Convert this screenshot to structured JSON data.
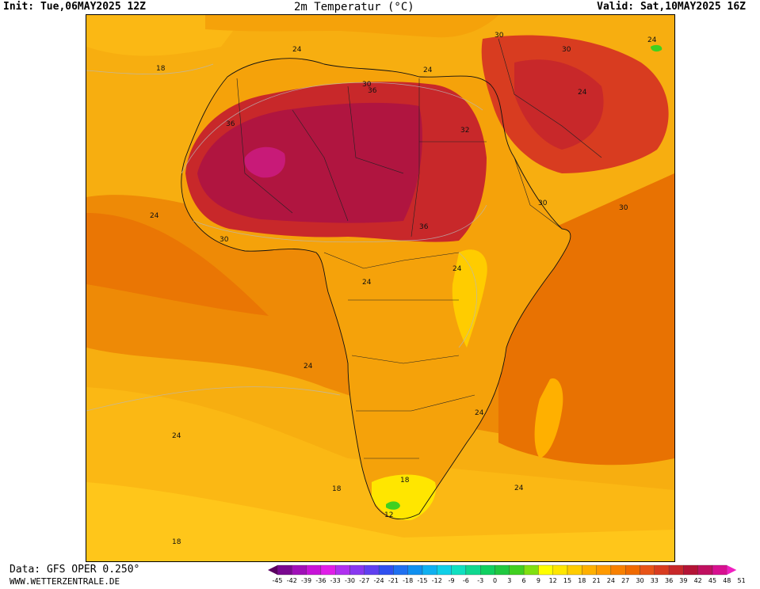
{
  "header": {
    "init": "Init: Tue,06MAY2025 12Z",
    "title": "2m Temperatur (°C)",
    "valid": "Valid: Sat,10MAY2025 16Z"
  },
  "footer": {
    "source": "Data: GFS OPER 0.250°",
    "website": "WWW.WETTERZENTRALE.DE"
  },
  "contour_labels": [
    "18",
    "24",
    "30",
    "36",
    "36",
    "30",
    "24",
    "24",
    "30",
    "24",
    "32",
    "36",
    "30",
    "30",
    "24",
    "24",
    "24",
    "24",
    "24",
    "18",
    "18",
    "12",
    "24",
    "18",
    "24",
    "30"
  ],
  "legend": {
    "ticks": [
      "-45",
      "-42",
      "-39",
      "-36",
      "-33",
      "-30",
      "-27",
      "-24",
      "-21",
      "-18",
      "-15",
      "-12",
      "-9",
      "-6",
      "-3",
      "0",
      "3",
      "6",
      "9",
      "12",
      "15",
      "18",
      "21",
      "24",
      "27",
      "30",
      "33",
      "36",
      "39",
      "42",
      "45",
      "48",
      "51"
    ],
    "colors": [
      "#5a0060",
      "#7a0890",
      "#a010b8",
      "#c814d8",
      "#e01ee8",
      "#b030f0",
      "#8838f0",
      "#6040f0",
      "#3050f0",
      "#2070f0",
      "#1090f0",
      "#10b0f0",
      "#10d0e8",
      "#10e0c0",
      "#10d890",
      "#10d060",
      "#20c840",
      "#40d020",
      "#80e010",
      "#ffff00",
      "#ffe600",
      "#ffcc00",
      "#ffb000",
      "#ff9a00",
      "#f88000",
      "#f06a00",
      "#e85418",
      "#d83c20",
      "#c8282a",
      "#b41436",
      "#c01060",
      "#d81090",
      "#f020c0"
    ]
  }
}
